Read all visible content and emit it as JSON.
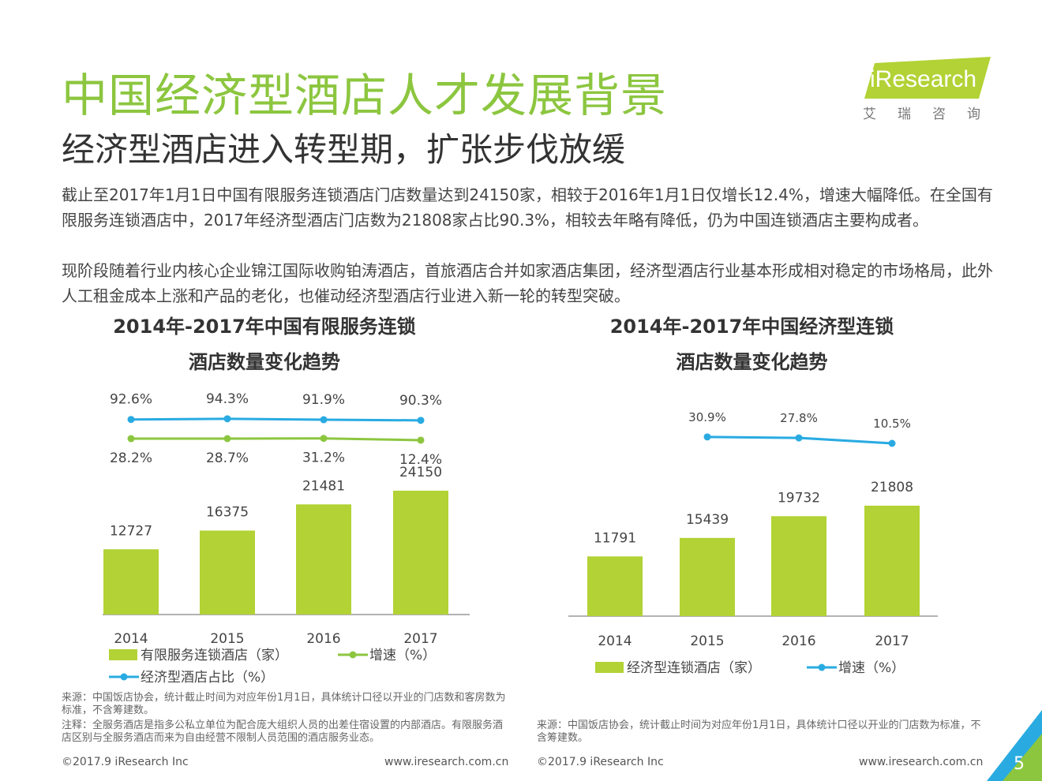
{
  "header": {
    "title": "中国经济型酒店人才发展背景",
    "subtitle": "经济型酒店进入转型期，扩张步伐放缓",
    "logo_text": "iResearch",
    "logo_subtext": "艾瑞咨询"
  },
  "body": {
    "paragraph_1": "截止至2017年1月1日中国有限服务连锁酒店门店数量达到24150家，相较于2016年1月1日仅增长12.4%，增速大幅降低。在全国有限服务连锁酒店中，2017年经济型酒店门店数为21808家占比90.3%，相较去年略有降低，仍为中国连锁酒店主要构成者。",
    "paragraph_2": "现阶段随着行业内核心企业锦江国际收购铂涛酒店，首旅酒店合并如家酒店集团，经济型酒店行业基本形成相对稳定的市场格局，此外人工租金成本上涨和产品的老化，也催动经济型酒店行业进入新一轮的转型突破。"
  },
  "chart_data": [
    {
      "type": "bar",
      "title_line1": "2014年-2017年中国有限服务连锁",
      "title_line2": "酒店数量变化趋势",
      "categories": [
        "2014",
        "2015",
        "2016",
        "2017"
      ],
      "series": [
        {
          "name": "有限服务连锁酒店（家）",
          "type": "bar",
          "values": [
            12727,
            16375,
            21481,
            24150
          ],
          "color": "#b2d235"
        },
        {
          "name": "增速（%）",
          "type": "line",
          "values": [
            28.2,
            28.7,
            31.2,
            12.4
          ],
          "labels": [
            "28.2%",
            "28.7%",
            "31.2%",
            "12.4%"
          ],
          "color": "#8cc63f"
        },
        {
          "name": "经济型酒店占比（%）",
          "type": "line",
          "values": [
            92.6,
            94.3,
            91.9,
            90.3
          ],
          "labels": [
            "92.6%",
            "94.3%",
            "91.9%",
            "90.3%"
          ],
          "color": "#29abe2"
        }
      ]
    },
    {
      "type": "bar",
      "title_line1": "2014年-2017年中国经济型连锁",
      "title_line2": "酒店数量变化趋势",
      "categories": [
        "2014",
        "2015",
        "2016",
        "2017"
      ],
      "series": [
        {
          "name": "经济型连锁酒店（家）",
          "type": "bar",
          "values": [
            11791,
            15439,
            19732,
            21808
          ],
          "color": "#b2d235"
        },
        {
          "name": "增速（%）",
          "type": "line",
          "values": [
            null,
            30.9,
            27.8,
            10.5
          ],
          "labels": [
            "",
            "30.9%",
            "27.8%",
            "10.5%"
          ],
          "color": "#29abe2"
        }
      ]
    }
  ],
  "notes": {
    "source_1": "来源：中国饭店协会，统计截止时间为对应年份1月1日，具体统计口径以开业的门店数和客房数为标准，不含筹建数。",
    "note_1": "注释：全服务酒店是指多公私立单位为配合庞大组织人员的出差住宿设置的内部酒店。有限服务酒店区别与全服务酒店而来为自由经营不限制人员范围的酒店服务业态。",
    "source_2": "来源：中国饭店协会，统计截止时间为对应年份1月1日，具体统计口径以开业的门店数为标准，不含筹建数。"
  },
  "footer": {
    "copyright_left": "©2017.9 iResearch Inc",
    "url_left": "www.iresearch.com.cn",
    "copyright_right": "©2017.9 iResearch Inc",
    "url_right": "www.iresearch.com.cn",
    "page_number": "5"
  },
  "colors": {
    "accent_green": "#8cc63f",
    "bar_green": "#b2d235",
    "line_blue": "#29abe2"
  }
}
